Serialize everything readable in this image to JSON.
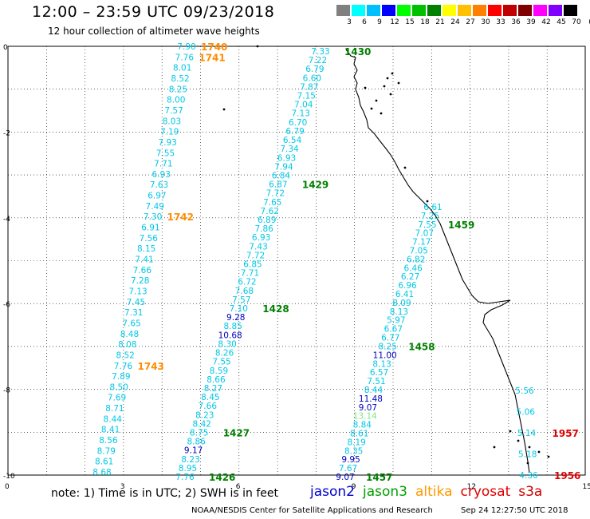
{
  "header": {
    "title": "12:00 – 23:59 UTC 09/23/2018",
    "subtitle": "12 hour collection of altimeter wave heights"
  },
  "legend": {
    "unit": "(ft)",
    "colors": [
      "#808080",
      "#00ffff",
      "#00bfff",
      "#0000ff",
      "#00ff00",
      "#00c000",
      "#008000",
      "#ffff00",
      "#ffc000",
      "#ff8000",
      "#ff0000",
      "#c00000",
      "#800000",
      "#ff00ff",
      "#8000ff",
      "#000000"
    ],
    "labels": [
      "3",
      "6",
      "9",
      "12",
      "15",
      "18",
      "21",
      "24",
      "27",
      "30",
      "33",
      "36",
      "39",
      "42",
      "45",
      "70"
    ]
  },
  "axes": {
    "x_ticks": [
      "0",
      "3",
      "6",
      "9",
      "12",
      "15"
    ],
    "y_ticks": [
      "0",
      "-2",
      "-4",
      "-6",
      "-8",
      "-10"
    ]
  },
  "tracks": [
    {
      "satellite": "altika",
      "color": "#00c8e6",
      "values": [
        "7.90",
        "7.76",
        "8.01",
        "8.52",
        "8.25",
        "8.00",
        "7.57",
        "8.03",
        "7.19",
        "7.93",
        "7.55",
        "7.71",
        "6.93",
        "7.63",
        "6.97",
        "7.49",
        "7.30",
        "6.91",
        "7.56",
        "8.15",
        "7.41",
        "7.66",
        "7.28",
        "7.13",
        "7.45",
        "7.31",
        "7.65",
        "8.48",
        "8.08",
        "8.52",
        "7.76",
        "7.89",
        "8.50",
        "7.69",
        "8.71",
        "8.44",
        "8.41",
        "8.56",
        "8.79",
        "8.61",
        "8.68"
      ],
      "value_colors": {},
      "times": [
        {
          "label": "1740",
          "index": 0
        },
        {
          "label": "1741",
          "index": 1
        },
        {
          "label": "1742",
          "index": 16
        },
        {
          "label": "1743",
          "index": 30
        }
      ]
    },
    {
      "satellite": "jason3",
      "color": "#00c8e6",
      "values": [
        "7.33",
        "7.22",
        "6.79",
        "6.60",
        "7.87",
        "7.15",
        "7.04",
        "7.13",
        "6.70",
        "6.79",
        "6.54",
        "7.34",
        "6.93",
        "7.94",
        "6.84",
        "6.87",
        "7.72",
        "7.65",
        "7.62",
        "6.89",
        "7.86",
        "6.93",
        "7.43",
        "7.72",
        "6.85",
        "7.71",
        "6.72",
        "7.68",
        "7.57",
        "7.10",
        "9.28",
        "8.85",
        "10.68",
        "8.30",
        "8.26",
        "7.55",
        "8.59",
        "8.66",
        "8.27",
        "8.45",
        "7.66",
        "8.23",
        "8.42",
        "8.75",
        "8.86",
        "9.17",
        "8.23",
        "8.95",
        "7.76"
      ],
      "value_colors": {
        "9.28": "#0000c0",
        "10.68": "#0000c0",
        "9.17": "#0000c0"
      },
      "times": [
        {
          "label": "1430",
          "index": 0
        },
        {
          "label": "1429",
          "index": 15
        },
        {
          "label": "1428",
          "index": 29
        },
        {
          "label": "1427",
          "index": 43
        },
        {
          "label": "1426",
          "index": 48
        }
      ]
    },
    {
      "satellite": "jason3",
      "color": "#00c8e6",
      "values": [
        "6.61",
        "7.25",
        "7.55",
        "7.07",
        "7.17",
        "7.05",
        "6.82",
        "6.46",
        "6.27",
        "6.96",
        "6.41",
        "8.09",
        "8.13",
        "5.97",
        "6.67",
        "6.77",
        "8.25",
        "11.00",
        "8.13",
        "6.57",
        "7.51",
        "8.44",
        "11.48",
        "9.07",
        "13.14",
        "8.84",
        "8.61",
        "8.19",
        "8.35",
        "9.95",
        "7.67",
        "9.07"
      ],
      "value_colors": {
        "11.00": "#0000c0",
        "11.48": "#0000c0",
        "9.07": "#0000c0",
        "9.95": "#0000c0",
        "13.14": "#7ce87c"
      },
      "times": [
        {
          "label": "1459",
          "index": 2
        },
        {
          "label": "1458",
          "index": 16
        },
        {
          "label": "1457",
          "index": 31
        }
      ]
    },
    {
      "satellite": "cryosat",
      "color": "#00c8e6",
      "values": [
        "5.56",
        "5.06",
        "5.14",
        "5.18",
        "4.36"
      ],
      "value_colors": {},
      "times": [
        {
          "label": "1957",
          "index": 2
        },
        {
          "label": "1956",
          "index": 4
        }
      ]
    }
  ],
  "time_colors": {
    "altika": "#ff8c00",
    "jason3": "#008000",
    "cryosat": "#e00000"
  },
  "footer": {
    "note": "note:  1) Time is in UTC;  2) SWH is in feet",
    "satellites": [
      {
        "name": "jason2",
        "color": "#0000d0"
      },
      {
        "name": "jason3",
        "color": "#00a000"
      },
      {
        "name": "altika",
        "color": "#ff9900"
      },
      {
        "name": "cryosat",
        "color": "#e00000"
      },
      {
        "name": "s3a",
        "color": "#c80000"
      }
    ],
    "credit": "NOAA/NESDIS Center for Satellite Applications and Research",
    "timestamp": "Sep 24 12:27:50 UTC 2018"
  }
}
